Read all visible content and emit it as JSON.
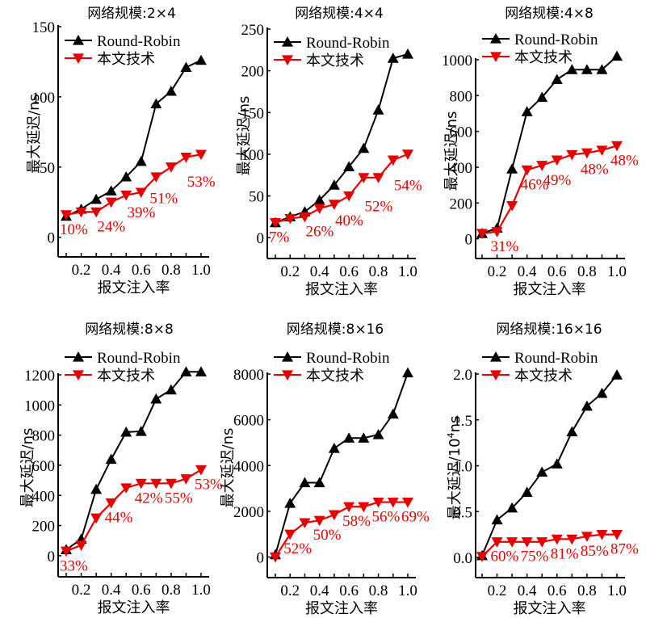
{
  "colors": {
    "round_robin": "#000000",
    "proposed": "#e60000"
  },
  "legend": {
    "round_robin": "Round-Robin",
    "proposed": "本文技术"
  },
  "chart_data": [
    {
      "type": "line",
      "title": "网络规模:2×4",
      "xlabel": "报文注入率",
      "ylabel": "最大延迟/ns",
      "x": [
        0.1,
        0.2,
        0.3,
        0.4,
        0.5,
        0.6,
        0.7,
        0.8,
        0.9,
        1.0
      ],
      "xticks": [
        "0.2",
        "0.4",
        "0.6",
        "0.8",
        "1.0"
      ],
      "yticks": [
        "0",
        "50",
        "100",
        "150"
      ],
      "ylim": [
        -14,
        150
      ],
      "series": [
        {
          "name": "Round-Robin",
          "values": [
            15,
            20,
            27,
            33,
            43,
            54,
            95,
            104,
            121,
            126
          ]
        },
        {
          "name": "本文技术",
          "values": [
            16,
            18,
            18,
            25,
            30,
            32,
            43,
            50,
            57,
            59
          ]
        }
      ],
      "annotations": [
        {
          "text": "10%",
          "x": 0.1,
          "y": 16
        },
        {
          "text": "24%",
          "x": 0.35,
          "y": 18
        },
        {
          "text": "39%",
          "x": 0.55,
          "y": 28
        },
        {
          "text": "51%",
          "x": 0.7,
          "y": 38
        },
        {
          "text": "53%",
          "x": 0.95,
          "y": 50
        }
      ]
    },
    {
      "type": "line",
      "title": "网络规模:4×4",
      "xlabel": "报文注入率",
      "ylabel": "最大延迟/ns",
      "x": [
        0.1,
        0.2,
        0.3,
        0.4,
        0.5,
        0.6,
        0.7,
        0.8,
        0.9,
        1.0
      ],
      "xticks": [
        "0.2",
        "0.4",
        "0.6",
        "0.8",
        "1.0"
      ],
      "yticks": [
        "0",
        "50",
        "100",
        "150",
        "200",
        "250"
      ],
      "ylim": [
        -25,
        250
      ],
      "series": [
        {
          "name": "Round-Robin",
          "values": [
            18,
            25,
            31,
            45,
            63,
            85,
            107,
            153,
            215,
            220
          ]
        },
        {
          "name": "本文技术",
          "values": [
            18,
            23,
            25,
            35,
            40,
            50,
            72,
            72,
            93,
            100
          ]
        }
      ],
      "annotations": [
        {
          "text": "7%",
          "x": 0.1,
          "y": 18
        },
        {
          "text": "26%",
          "x": 0.35,
          "y": 25
        },
        {
          "text": "40%",
          "x": 0.55,
          "y": 38
        },
        {
          "text": "52%",
          "x": 0.75,
          "y": 55
        },
        {
          "text": "54%",
          "x": 0.95,
          "y": 80
        }
      ]
    },
    {
      "type": "line",
      "title": "网络规模:4×8",
      "xlabel": "报文注入率",
      "ylabel": "最大延迟/ns",
      "x": [
        0.1,
        0.2,
        0.3,
        0.4,
        0.5,
        0.6,
        0.7,
        0.8,
        0.9,
        1.0
      ],
      "xticks": [
        "0.2",
        "0.4",
        "0.6",
        "0.8",
        "1.0"
      ],
      "yticks": [
        "0",
        "200",
        "400",
        "600",
        "800",
        "1000"
      ],
      "ylim": [
        -110,
        1000
      ],
      "series": [
        {
          "name": "Round-Robin",
          "values": [
            30,
            60,
            390,
            710,
            790,
            890,
            945,
            945,
            945,
            1020
          ]
        },
        {
          "name": "本文技术",
          "values": [
            30,
            40,
            185,
            385,
            410,
            440,
            470,
            480,
            495,
            520
          ]
        }
      ],
      "annotations": [
        {
          "text": "31%",
          "x": 0.2,
          "y": 40
        },
        {
          "text": "46%",
          "x": 0.4,
          "y": 385
        },
        {
          "text": "49%",
          "x": 0.55,
          "y": 410
        },
        {
          "text": "48%",
          "x": 0.8,
          "y": 470
        },
        {
          "text": "48%",
          "x": 1.0,
          "y": 520
        }
      ]
    },
    {
      "type": "line",
      "title": "网络规模:8×8",
      "xlabel": "报文注入率",
      "ylabel": "最大延迟/ns",
      "x": [
        0.1,
        0.2,
        0.3,
        0.4,
        0.5,
        0.6,
        0.7,
        0.8,
        0.9,
        1.0
      ],
      "xticks": [
        "0.2",
        "0.4",
        "0.6",
        "0.8",
        "1.0"
      ],
      "yticks": [
        "0",
        "200",
        "400",
        "600",
        "800",
        "1000",
        "1200"
      ],
      "ylim": [
        -140,
        1200
      ],
      "series": [
        {
          "name": "Round-Robin",
          "values": [
            40,
            110,
            440,
            640,
            820,
            825,
            1040,
            1100,
            1220,
            1220
          ]
        },
        {
          "name": "本文技术",
          "values": [
            30,
            70,
            250,
            350,
            450,
            480,
            480,
            480,
            510,
            570
          ]
        }
      ],
      "annotations": [
        {
          "text": "33%",
          "x": 0.1,
          "y": 30
        },
        {
          "text": "44%",
          "x": 0.4,
          "y": 350
        },
        {
          "text": "42%",
          "x": 0.6,
          "y": 480
        },
        {
          "text": "55%",
          "x": 0.8,
          "y": 480
        },
        {
          "text": "53%",
          "x": 1.0,
          "y": 570
        }
      ]
    },
    {
      "type": "line",
      "title": "网络规模:8×16",
      "xlabel": "报文注入率",
      "ylabel": "最大延迟/ns",
      "x": [
        0.1,
        0.2,
        0.3,
        0.4,
        0.5,
        0.6,
        0.7,
        0.8,
        0.9,
        1.0
      ],
      "xticks": [
        "0.2",
        "0.4",
        "0.6",
        "0.8",
        "1.0"
      ],
      "yticks": [
        "0",
        "2000",
        "4000",
        "6000",
        "8000"
      ],
      "ylim": [
        -900,
        8000
      ],
      "series": [
        {
          "name": "Round-Robin",
          "values": [
            100,
            2350,
            3250,
            3250,
            4750,
            5200,
            5200,
            5350,
            6250,
            8050
          ]
        },
        {
          "name": "本文技术",
          "values": [
            0,
            1000,
            1500,
            1600,
            1850,
            2200,
            2200,
            2400,
            2400,
            2400
          ]
        }
      ],
      "annotations": [
        {
          "text": "52%",
          "x": 0.2,
          "y": 1000
        },
        {
          "text": "50%",
          "x": 0.4,
          "y": 1600
        },
        {
          "text": "58%",
          "x": 0.6,
          "y": 2200
        },
        {
          "text": "56%",
          "x": 0.8,
          "y": 2400
        },
        {
          "text": "69%",
          "x": 1.0,
          "y": 2400
        }
      ]
    },
    {
      "type": "line",
      "title": "网络规模:16×16",
      "xlabel": "报文注入率",
      "ylabel": "最大延迟/10^4ns",
      "ylabel_parts": {
        "main": "最大延迟/10",
        "sup": "4",
        "tail": "ns"
      },
      "x": [
        0.1,
        0.2,
        0.3,
        0.4,
        0.5,
        0.6,
        0.7,
        0.8,
        0.9,
        1.0
      ],
      "xticks": [
        "0.2",
        "0.4",
        "0.6",
        "0.8",
        "1.0"
      ],
      "yticks": [
        "0.0",
        "0.5",
        "1.0",
        "1.5",
        "2.0"
      ],
      "ylim": [
        -0.22,
        2.0
      ],
      "series": [
        {
          "name": "Round-Robin",
          "values": [
            0.02,
            0.41,
            0.54,
            0.71,
            0.93,
            1.02,
            1.37,
            1.65,
            1.79,
            1.99
          ]
        },
        {
          "name": "本文技术",
          "values": [
            0.01,
            0.17,
            0.17,
            0.17,
            0.17,
            0.2,
            0.2,
            0.23,
            0.25,
            0.25
          ]
        }
      ],
      "annotations": [
        {
          "text": "60%",
          "x": 0.2,
          "y": 0.17
        },
        {
          "text": "75%",
          "x": 0.4,
          "y": 0.17
        },
        {
          "text": "81%",
          "x": 0.6,
          "y": 0.2
        },
        {
          "text": "85%",
          "x": 0.8,
          "y": 0.23
        },
        {
          "text": "87%",
          "x": 1.0,
          "y": 0.25
        }
      ]
    }
  ]
}
